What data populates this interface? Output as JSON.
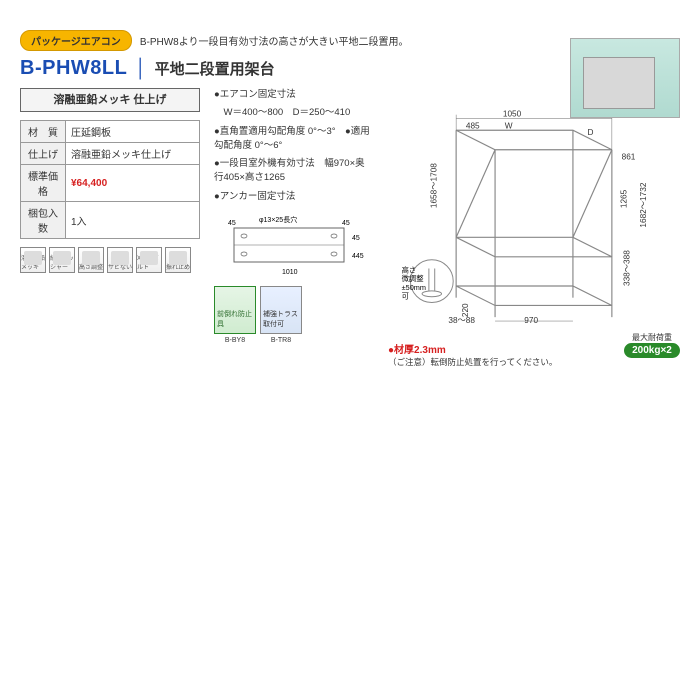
{
  "header": {
    "badge": "パッケージエアコン",
    "subtitle": "B-PHW8より一段目有効寸法の高さが大きい平地二段置用。",
    "model": "B-PHW8LL",
    "title_jp": "平地二段置用架台"
  },
  "finish_box": "溶融亜鉛メッキ\n仕上げ",
  "spec_table": {
    "rows": [
      {
        "label": "材　質",
        "value": "圧延鋼板"
      },
      {
        "label": "仕上げ",
        "value": "溶融亜鉛メッキ仕上げ"
      },
      {
        "label": "標準価格",
        "value": "¥64,400",
        "price": true
      },
      {
        "label": "梱包入数",
        "value": "1入"
      }
    ]
  },
  "feature_icons": [
    "溶融亜鉛メッキ",
    "組継ワッシャー",
    "高さ調整",
    "サビない",
    "XISコボルト",
    "振れ止め"
  ],
  "mid": {
    "l1": "●エアコン固定寸法",
    "l2": "　W＝400～800　D＝250～410",
    "l3": "●直角置適用勾配角度 0°～3°　●適用勾配角度 0°～6°",
    "l4": "●一段目室外機有効寸法　幅970×奥行405×高さ1265",
    "l5": "●アンカー固定寸法",
    "sketch_labels": {
      "w1": "45",
      "w2": "45",
      "w3": "1010",
      "h1": "45",
      "h2": "445",
      "hole": "φ13×25長穴"
    },
    "thumbs": [
      {
        "top": "前倒れ防止具",
        "cap": "B-BY8",
        "green": true
      },
      {
        "top": "補強トラス取付可",
        "cap": "B-TR8",
        "green": false
      }
    ]
  },
  "diagram": {
    "dims": {
      "top_total": "1050",
      "top_w": "W",
      "top_485": "485",
      "top_d": "D",
      "r_861": "861",
      "h_left": "1658～1708",
      "h_right": "1682～1732",
      "h_mid": "1265",
      "base_970": "970",
      "base_l_220": "220",
      "base_l_38": "38～88",
      "base_r_338": "338～388"
    },
    "adjust_note": "高さ\n微調整\n±50mm\n可",
    "thickness": "●材厚2.3mm",
    "caution": "（ご注意）転倒防止処置を行ってください。",
    "load": {
      "t": "最大耐荷重",
      "v": "200kg×2"
    },
    "colors": {
      "line": "#888",
      "dim": "#333",
      "red": "#d62020",
      "green": "#2a8a2a"
    }
  }
}
